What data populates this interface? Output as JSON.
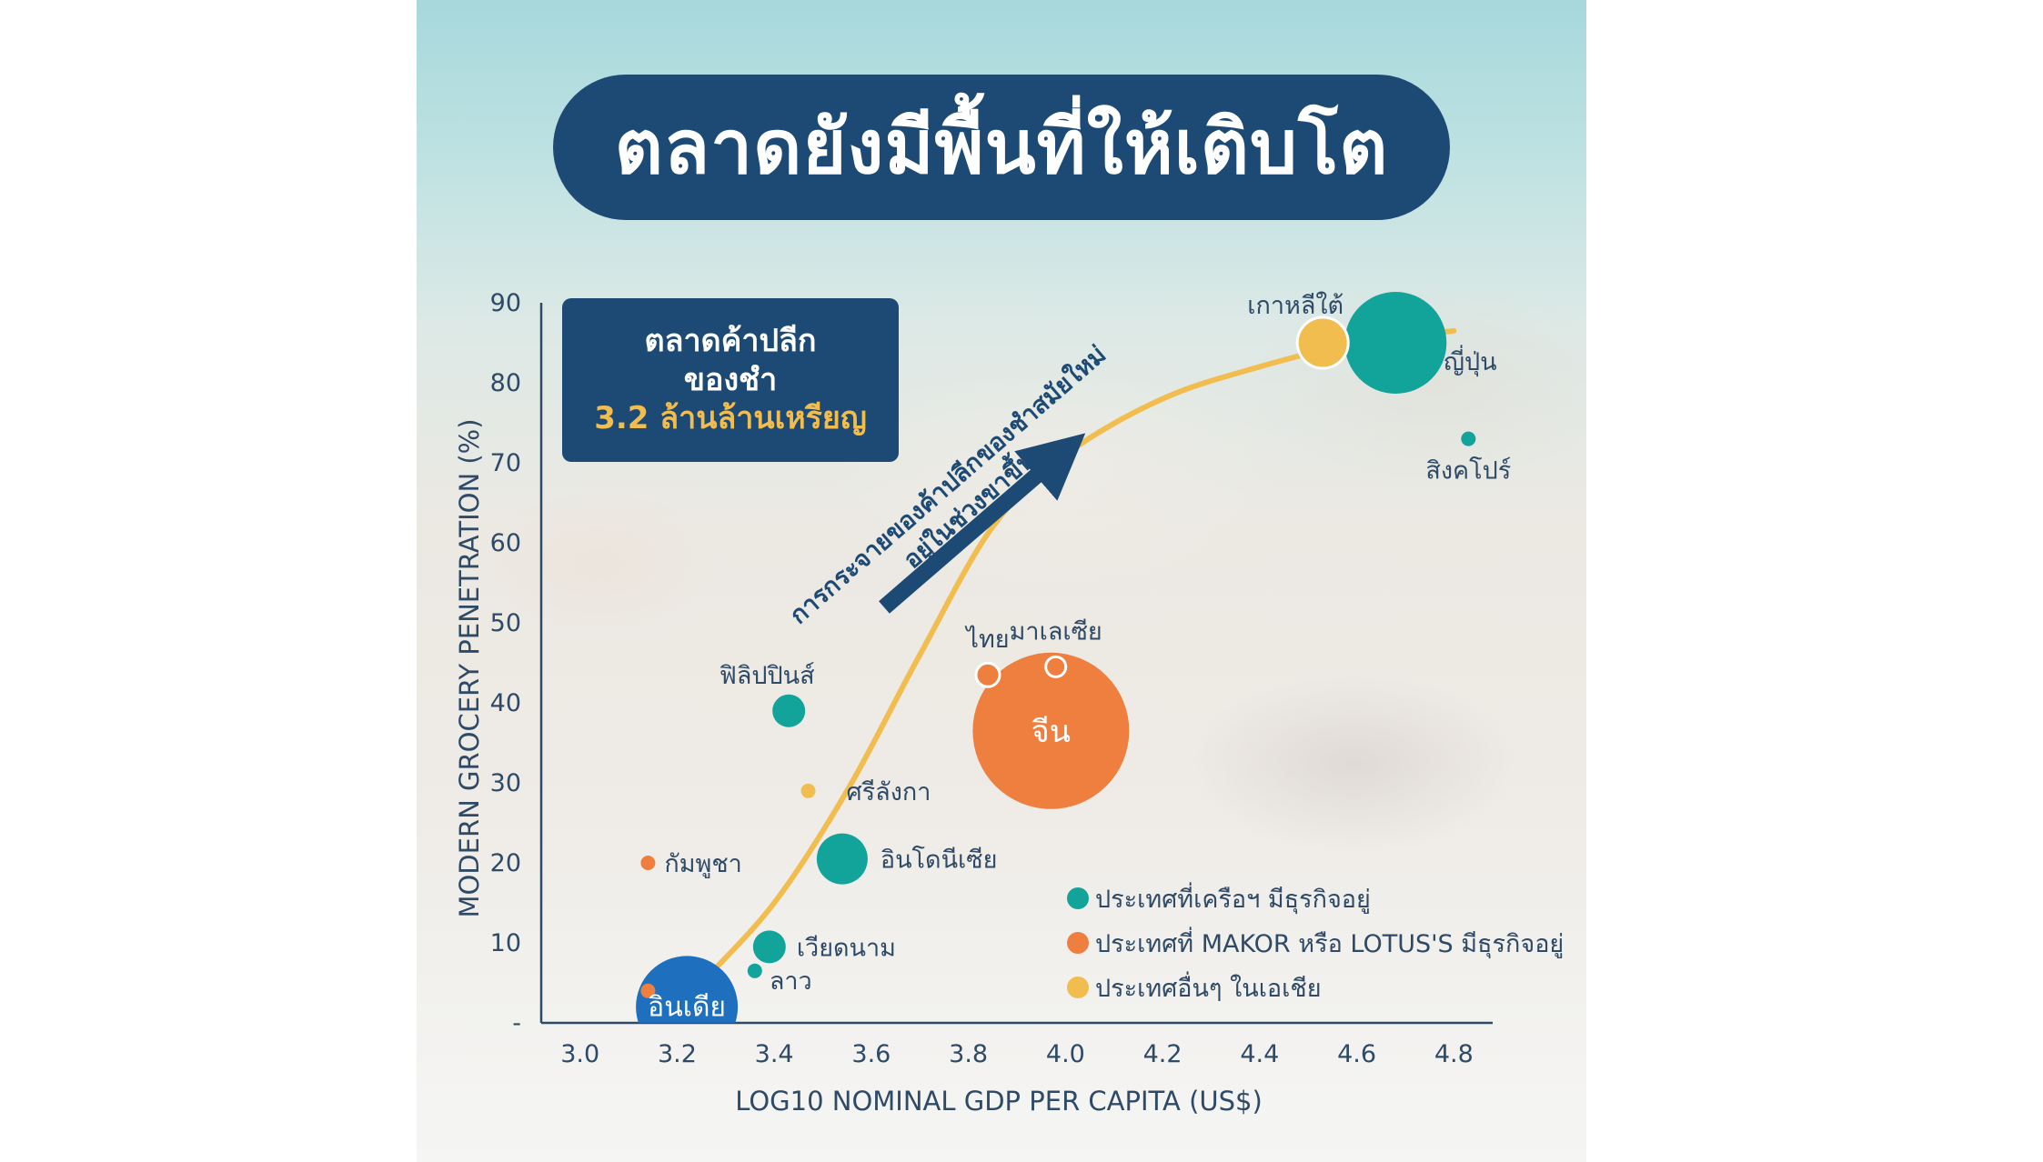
{
  "title": "ตลาดยังมีพื้นที่ให้เติบโต",
  "info_box": {
    "line1": "ตลาดค้าปลีก",
    "line2": "ของชำ",
    "line3": "3.2 ล้านล้านเหรียญ"
  },
  "colors": {
    "title_bg": "#1d4a74",
    "teal": "#12a39a",
    "orange": "#ee7f3f",
    "yellow": "#f2bd4f",
    "india_blue": "#1f6fbf",
    "axis": "#2e4a66"
  },
  "chart_data": {
    "type": "scatter",
    "xlabel": "LOG10 NOMINAL GDP PER CAPITA (US$)",
    "ylabel": "MODERN GROCERY PENETRATION (%)",
    "xlim": [
      2.92,
      4.88
    ],
    "ylim": [
      0,
      90
    ],
    "x_ticks": [
      "3.0",
      "3.2",
      "3.4",
      "3.6",
      "3.8",
      "4.0",
      "4.2",
      "4.4",
      "4.6",
      "4.8"
    ],
    "y_ticks": [
      "-",
      "10",
      "20",
      "30",
      "40",
      "50",
      "60",
      "70",
      "80",
      "90"
    ],
    "trend_arrow_text": [
      "การกระจายของค้าปลีกของชำสมัยใหม่",
      "อยู่ในช่วงขาขึ้น"
    ],
    "legend": [
      {
        "label": "ประเทศที่เครือฯ มีธุรกิจอยู่",
        "color": "teal"
      },
      {
        "label": "ประเทศที่ MAKOR หรือ LOTUS'S มีธุรกิจอยู่",
        "color": "orange"
      },
      {
        "label": "ประเทศอื่นๆ ในเอเชีย",
        "color": "yellow"
      }
    ],
    "points": [
      {
        "label": "อินเดีย",
        "x": 3.22,
        "y": 2,
        "size": "large",
        "color": "india_blue"
      },
      {
        "label": "ลาว",
        "x": 3.36,
        "y": 6.5,
        "size": "tiny",
        "color": "teal"
      },
      {
        "label": "เวียดนาม",
        "x": 3.39,
        "y": 9.5,
        "size": "small",
        "color": "teal"
      },
      {
        "label": "กัมพูชา",
        "x": 3.14,
        "y": 20,
        "size": "tiny",
        "color": "orange"
      },
      {
        "label": "อินโดนีเซีย",
        "x": 3.54,
        "y": 20.5,
        "size": "medium",
        "color": "teal"
      },
      {
        "label": "ศรีลังกา",
        "x": 3.47,
        "y": 29,
        "size": "tiny",
        "color": "yellow"
      },
      {
        "label": "ฟิลิปปินส์",
        "x": 3.43,
        "y": 39,
        "size": "small",
        "color": "teal"
      },
      {
        "label": "ไทย",
        "x": 3.84,
        "y": 43.5,
        "size": "small",
        "color": "orange"
      },
      {
        "label": "มาเลเซีย",
        "x": 3.98,
        "y": 44.5,
        "size": "small",
        "color": "orange"
      },
      {
        "label": "จีน",
        "x": 3.97,
        "y": 36.5,
        "size": "huge",
        "color": "orange"
      },
      {
        "label": "เกาหลีใต้",
        "x": 4.53,
        "y": 85,
        "size": "medium",
        "color": "yellow"
      },
      {
        "label": "ญี่ปุ่น",
        "x": 4.68,
        "y": 85,
        "size": "large",
        "color": "teal"
      },
      {
        "label": "สิงคโปร์",
        "x": 4.83,
        "y": 73,
        "size": "tiny",
        "color": "teal"
      },
      {
        "label": "",
        "x": 3.14,
        "y": 4,
        "size": "tiny",
        "color": "orange"
      }
    ],
    "trend_line": [
      {
        "x": 3.25,
        "y": 5
      },
      {
        "x": 3.4,
        "y": 15
      },
      {
        "x": 3.55,
        "y": 29
      },
      {
        "x": 3.7,
        "y": 46
      },
      {
        "x": 3.85,
        "y": 62
      },
      {
        "x": 4.0,
        "y": 71
      },
      {
        "x": 4.2,
        "y": 78
      },
      {
        "x": 4.4,
        "y": 82
      },
      {
        "x": 4.6,
        "y": 85
      },
      {
        "x": 4.8,
        "y": 86.5
      }
    ]
  }
}
